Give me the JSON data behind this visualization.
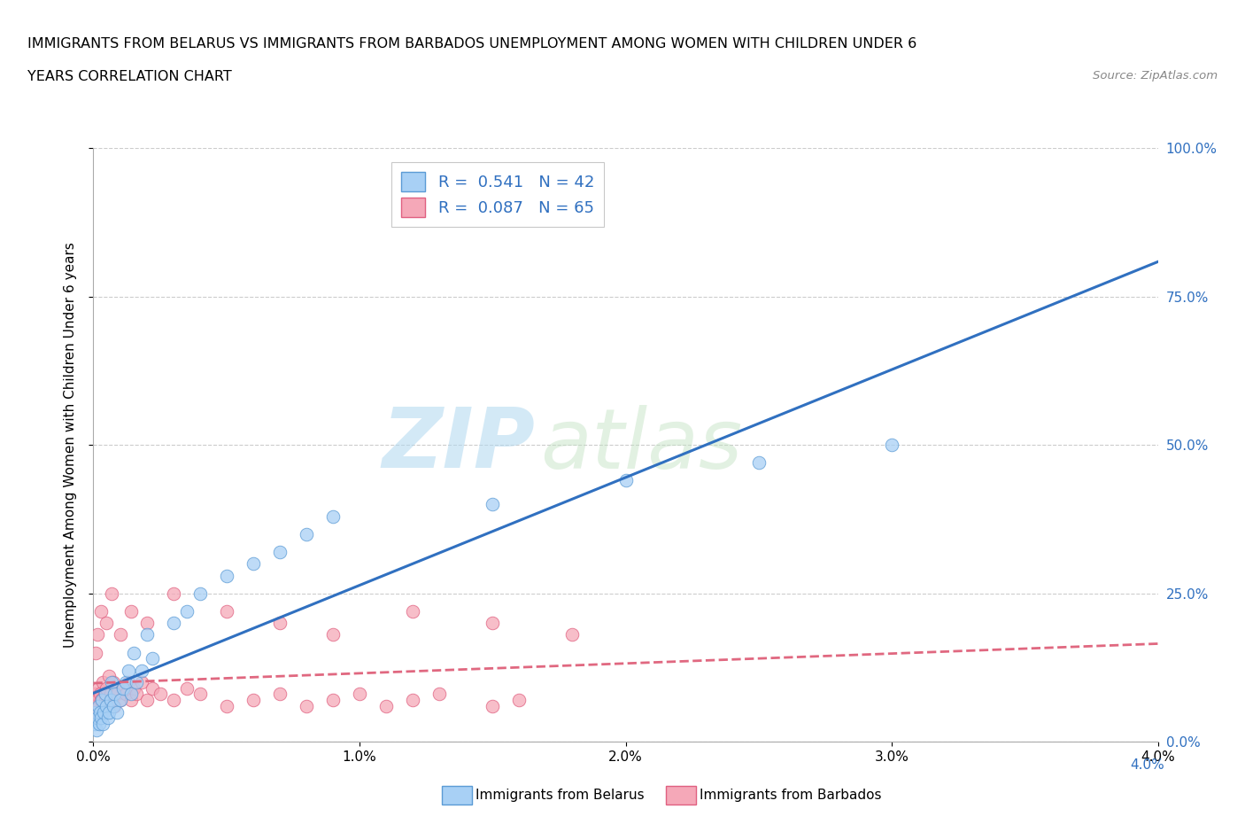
{
  "title_line1": "IMMIGRANTS FROM BELARUS VS IMMIGRANTS FROM BARBADOS UNEMPLOYMENT AMONG WOMEN WITH CHILDREN UNDER 6",
  "title_line2": "YEARS CORRELATION CHART",
  "source": "Source: ZipAtlas.com",
  "ylabel": "Unemployment Among Women with Children Under 6 years",
  "xlabel_belarus": "Immigrants from Belarus",
  "xlabel_barbados": "Immigrants from Barbados",
  "R_belarus": 0.541,
  "N_belarus": 42,
  "R_barbados": 0.087,
  "N_barbados": 65,
  "color_belarus": "#A8D0F5",
  "color_barbados": "#F5A8B8",
  "edge_color_belarus": "#5B9BD5",
  "edge_color_barbados": "#E06080",
  "line_color_belarus": "#3070C0",
  "line_color_barbados": "#E06880",
  "xmin": 0.0,
  "xmax": 0.04,
  "ymin": 0.0,
  "ymax": 1.0,
  "yticks": [
    0.0,
    0.25,
    0.5,
    0.75,
    1.0
  ],
  "ytick_labels_right": [
    "0.0%",
    "25.0%",
    "50.0%",
    "75.0%",
    "100.0%"
  ],
  "xticks": [
    0.0,
    0.01,
    0.02,
    0.03,
    0.04
  ],
  "xtick_labels": [
    "0.0%",
    "1.0%",
    "2.0%",
    "3.0%",
    "4.0%"
  ],
  "watermark_zip": "ZIP",
  "watermark_atlas": "atlas",
  "bg_color": "#FFFFFF",
  "grid_color": "#CCCCCC",
  "belarus_x": [
    5e-05,
    0.0001,
    0.00012,
    0.00015,
    0.0002,
    0.00022,
    0.00025,
    0.0003,
    0.00032,
    0.00035,
    0.0004,
    0.00045,
    0.0005,
    0.00055,
    0.0006,
    0.00065,
    0.0007,
    0.00075,
    0.0008,
    0.0009,
    0.001,
    0.0011,
    0.0012,
    0.0013,
    0.0014,
    0.0015,
    0.0016,
    0.0018,
    0.002,
    0.0022,
    0.003,
    0.0035,
    0.004,
    0.005,
    0.006,
    0.007,
    0.008,
    0.009,
    0.015,
    0.02,
    0.025,
    0.03
  ],
  "belarus_y": [
    0.03,
    0.05,
    0.02,
    0.04,
    0.06,
    0.03,
    0.05,
    0.04,
    0.07,
    0.03,
    0.05,
    0.08,
    0.06,
    0.04,
    0.05,
    0.07,
    0.1,
    0.06,
    0.08,
    0.05,
    0.07,
    0.09,
    0.1,
    0.12,
    0.08,
    0.15,
    0.1,
    0.12,
    0.18,
    0.14,
    0.2,
    0.22,
    0.25,
    0.28,
    0.3,
    0.32,
    0.35,
    0.38,
    0.4,
    0.44,
    0.47,
    0.5
  ],
  "barbados_x": [
    3e-05,
    5e-05,
    8e-05,
    0.0001,
    0.00012,
    0.00015,
    0.00018,
    0.0002,
    0.00022,
    0.00025,
    0.0003,
    0.00032,
    0.00035,
    0.0004,
    0.00042,
    0.00045,
    0.0005,
    0.00055,
    0.0006,
    0.00065,
    0.0007,
    0.00075,
    0.0008,
    0.00085,
    0.0009,
    0.001,
    0.0011,
    0.0012,
    0.0013,
    0.0014,
    0.0015,
    0.0016,
    0.0018,
    0.002,
    0.0022,
    0.0025,
    0.003,
    0.0035,
    0.004,
    0.005,
    0.006,
    0.007,
    0.008,
    0.009,
    0.01,
    0.011,
    0.012,
    0.013,
    0.015,
    0.016,
    8e-05,
    0.00015,
    0.0003,
    0.0005,
    0.0007,
    0.001,
    0.0014,
    0.002,
    0.003,
    0.005,
    0.007,
    0.009,
    0.012,
    0.015,
    0.018
  ],
  "barbados_y": [
    0.04,
    0.06,
    0.05,
    0.08,
    0.06,
    0.07,
    0.05,
    0.09,
    0.06,
    0.08,
    0.07,
    0.05,
    0.1,
    0.06,
    0.08,
    0.07,
    0.09,
    0.06,
    0.11,
    0.08,
    0.07,
    0.1,
    0.06,
    0.09,
    0.08,
    0.07,
    0.09,
    0.08,
    0.1,
    0.07,
    0.09,
    0.08,
    0.1,
    0.07,
    0.09,
    0.08,
    0.07,
    0.09,
    0.08,
    0.06,
    0.07,
    0.08,
    0.06,
    0.07,
    0.08,
    0.06,
    0.07,
    0.08,
    0.06,
    0.07,
    0.15,
    0.18,
    0.22,
    0.2,
    0.25,
    0.18,
    0.22,
    0.2,
    0.25,
    0.22,
    0.2,
    0.18,
    0.22,
    0.2,
    0.18
  ]
}
